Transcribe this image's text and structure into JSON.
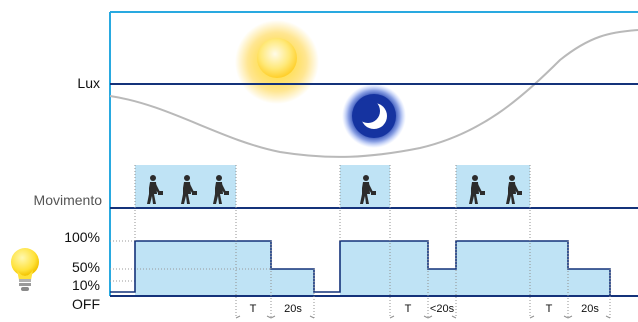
{
  "diagram": {
    "row_labels": {
      "lux": "Lux",
      "movement": "Movimento",
      "level_100": "100%",
      "level_50": "50%",
      "level_10": "10%",
      "level_off": "OFF"
    },
    "timing_labels": [
      "T",
      "20s",
      "T",
      "<20s",
      "T",
      "20s"
    ],
    "icons": [
      "sun-icon",
      "moon-icon",
      "light-bulb-icon",
      "walking-person-icon"
    ],
    "colors": {
      "axis": "#29a9e0",
      "rail": "#14327a",
      "fill": "#bfe3f5",
      "curve": "#b9b9b9",
      "dim_line": "#909090"
    }
  }
}
